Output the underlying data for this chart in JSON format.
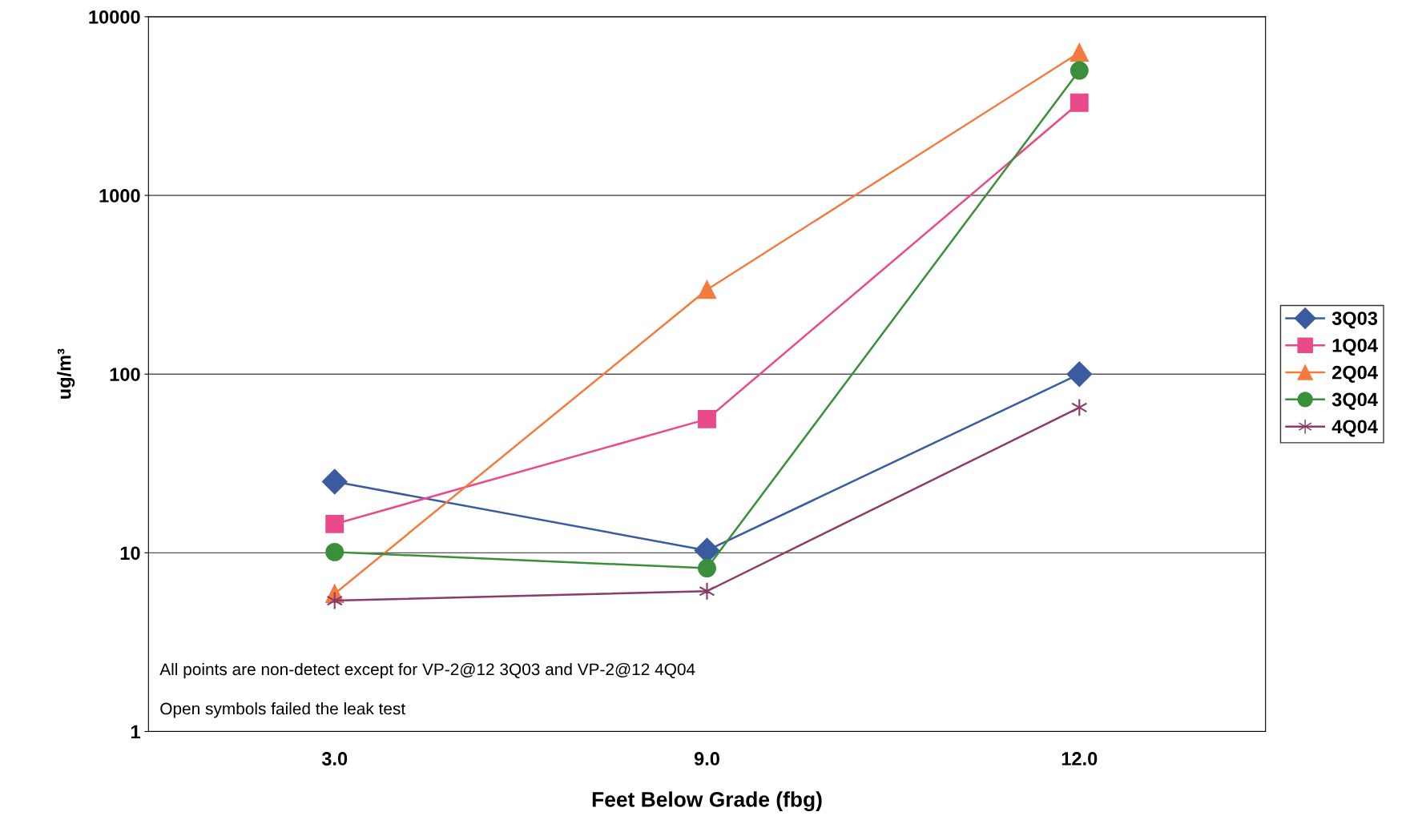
{
  "chart_data": {
    "type": "line",
    "xlabel": "Feet Below Grade (fbg)",
    "ylabel": "ug/m³",
    "categories": [
      "3.0",
      "9.0",
      "12.0"
    ],
    "series": [
      {
        "name": "3Q03",
        "color": "#3a5ba0",
        "marker": "diamond",
        "values": [
          25,
          10.3,
          100
        ]
      },
      {
        "name": "1Q04",
        "color": "#e84a8a",
        "marker": "square",
        "values": [
          14.5,
          56,
          3300
        ]
      },
      {
        "name": "2Q04",
        "color": "#f47b3f",
        "marker": "triangle",
        "values": [
          5.9,
          297,
          6300
        ]
      },
      {
        "name": "3Q04",
        "color": "#3a8f3a",
        "marker": "circle",
        "values": [
          10.1,
          8.2,
          5000
        ]
      },
      {
        "name": "4Q04",
        "color": "#8b3a6a",
        "marker": "cross",
        "values": [
          5.4,
          6.1,
          65
        ]
      }
    ],
    "log": "y",
    "ylim": [
      1,
      10000
    ],
    "yticks": [
      1,
      10,
      100,
      1000,
      10000
    ],
    "grid": "y",
    "legend": "right",
    "annotations": [
      "All points are non-detect except for VP-2@12 3Q03 and VP-2@12 4Q04",
      "Open symbols failed the leak test"
    ]
  }
}
